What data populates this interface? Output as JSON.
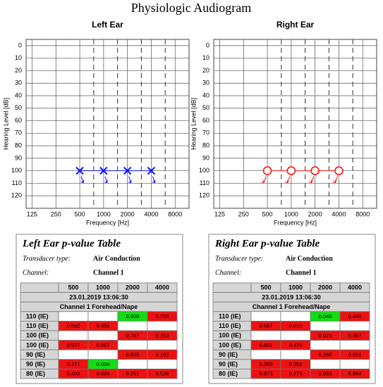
{
  "title": "Physiologic Audiogram",
  "chart_data": [
    {
      "type": "line",
      "title": "Left Ear",
      "title_color": "#1010ff",
      "xlabel": "Frequency [Hz]",
      "ylabel": "Hearing Level [dB]",
      "x_scale": "log",
      "xlim": [
        105,
        12000
      ],
      "xticks": [
        125,
        250,
        500,
        1000,
        2000,
        4000,
        8000
      ],
      "xticks_minor": [
        750,
        1500,
        3000,
        6000
      ],
      "ylim": [
        130,
        -5
      ],
      "yticks": [
        0,
        10,
        20,
        30,
        40,
        50,
        60,
        70,
        80,
        90,
        100,
        110,
        120
      ],
      "grid": true,
      "series": [
        {
          "color": "#1010ff",
          "marker": "x",
          "arrow": "down-right",
          "x": [
            500,
            1000,
            2000,
            4000
          ],
          "values": [
            100,
            100,
            100,
            100
          ]
        }
      ]
    },
    {
      "type": "line",
      "title": "Right Ear",
      "title_color": "#ff1010",
      "xlabel": "Frequency [Hz]",
      "ylabel": "Hearing Level [dB]",
      "x_scale": "log",
      "xlim": [
        105,
        12000
      ],
      "xticks": [
        125,
        250,
        500,
        1000,
        2000,
        4000,
        8000
      ],
      "xticks_minor": [
        750,
        1500,
        3000,
        6000
      ],
      "ylim": [
        130,
        -5
      ],
      "yticks": [
        0,
        10,
        20,
        30,
        40,
        50,
        60,
        70,
        80,
        90,
        100,
        110,
        120
      ],
      "grid": true,
      "series": [
        {
          "color": "#ff1010",
          "marker": "o",
          "arrow": "down-left",
          "x": [
            500,
            1000,
            2000,
            4000
          ],
          "values": [
            100,
            100,
            100,
            100
          ]
        }
      ]
    }
  ],
  "tables": [
    {
      "title": "Left Ear p-value Table",
      "fields": [
        {
          "label": "Transducer type:",
          "value": "Air Conduction"
        },
        {
          "label": "Channel:",
          "value": "Channel 1"
        }
      ],
      "columns": [
        "500",
        "1000",
        "2000",
        "4000"
      ],
      "date": "23.01.2019 13:06:30",
      "channel": "Channel 1 Forehead/Nape",
      "rows": [
        {
          "label": "110 (IE)",
          "values": [
            null,
            null,
            "0.008",
            "0.758"
          ],
          "colors": [
            null,
            null,
            "#11dd11",
            "#ee1111"
          ]
        },
        {
          "label": "110 (IE)",
          "values": [
            "0.592",
            "0.996",
            null,
            null
          ],
          "colors": [
            "#ee1111",
            "#ee1111",
            null,
            null
          ]
        },
        {
          "label": "100 (IE)",
          "values": [
            null,
            null,
            "0.747",
            "0.153"
          ],
          "colors": [
            null,
            null,
            "#ee1111",
            "#ee1111"
          ]
        },
        {
          "label": "100 (IE)",
          "values": [
            "0.577",
            "0.067",
            null,
            null
          ],
          "colors": [
            "#ee1111",
            "#ee1111",
            null,
            null
          ]
        },
        {
          "label": "90 (IE)",
          "values": [
            null,
            null,
            "0.835",
            "0.162"
          ],
          "colors": [
            null,
            null,
            "#ee1111",
            "#ee1111"
          ]
        },
        {
          "label": "90 (IE)",
          "values": [
            "0.171",
            "0.004",
            null,
            null
          ],
          "colors": [
            "#ee1111",
            "#11dd11",
            null,
            null
          ]
        },
        {
          "label": "80 (IE)",
          "values": [
            "0.493",
            "0.889",
            "0.291",
            "0.536"
          ],
          "colors": [
            "#ee1111",
            "#ee1111",
            "#ee1111",
            "#ee1111"
          ]
        }
      ]
    },
    {
      "title": "Right Ear p-value Table",
      "fields": [
        {
          "label": "Transducer type:",
          "value": "Air Conduction"
        },
        {
          "label": "Channel:",
          "value": "Channel 1"
        }
      ],
      "columns": [
        "500",
        "1000",
        "2000",
        "4000"
      ],
      "date": "23.01.2019 13:06:30",
      "channel": "Channel 1 Forehead/Nape",
      "rows": [
        {
          "label": "110 (IE)",
          "values": [
            null,
            null,
            "0.046",
            "0.440"
          ],
          "colors": [
            null,
            null,
            "#11dd11",
            "#ee1111"
          ]
        },
        {
          "label": "110 (IE)",
          "values": [
            "0.687",
            "0.818",
            null,
            null
          ],
          "colors": [
            "#ee1111",
            "#ee1111",
            null,
            null
          ]
        },
        {
          "label": "100 (IE)",
          "values": [
            null,
            null,
            "0.923",
            "0.367"
          ],
          "colors": [
            null,
            null,
            "#ee1111",
            "#ee1111"
          ]
        },
        {
          "label": "100 (IE)",
          "values": [
            "0.601",
            "0.470",
            null,
            null
          ],
          "colors": [
            "#ee1111",
            "#ee1111",
            null,
            null
          ]
        },
        {
          "label": "90 (IE)",
          "values": [
            null,
            null,
            "0.260",
            "0.801"
          ],
          "colors": [
            null,
            null,
            "#ee1111",
            "#ee1111"
          ]
        },
        {
          "label": "90 (IE)",
          "values": [
            "0.350",
            "0.352",
            null,
            null
          ],
          "colors": [
            "#ee1111",
            "#ee1111",
            null,
            null
          ]
        },
        {
          "label": "80 (IE)",
          "values": [
            "0.873",
            "0.273",
            "0.953",
            "0.884"
          ],
          "colors": [
            "#ee1111",
            "#ee1111",
            "#ee1111",
            "#ee1111"
          ]
        }
      ]
    }
  ]
}
